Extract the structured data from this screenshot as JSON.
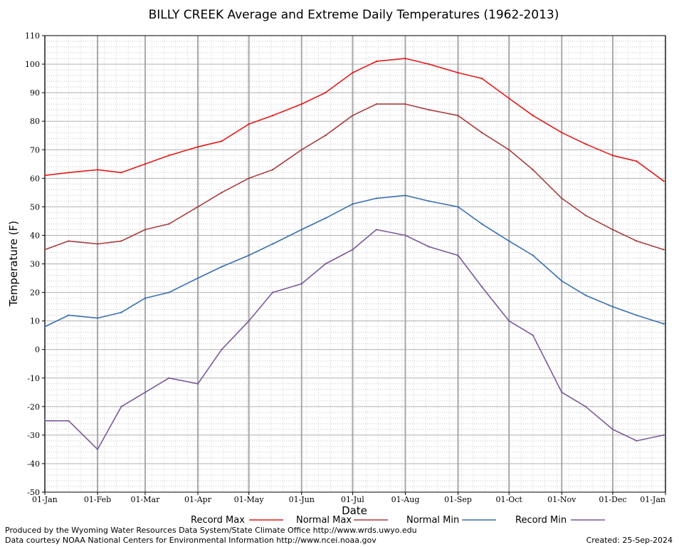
{
  "chart_data": {
    "type": "line",
    "title": "BILLY CREEK Average and Extreme Daily Temperatures (1962-2013)",
    "xlabel": "Date",
    "ylabel": "Temperature (F)",
    "ylim": [
      -50,
      110
    ],
    "yticks": [
      "110",
      "100",
      "90",
      "80",
      "70",
      "60",
      "50",
      "40",
      "30",
      "20",
      "10",
      "0",
      "-10",
      "-20",
      "-30",
      "-40",
      "-50"
    ],
    "xticks": [
      "01-Jan",
      "01-Feb",
      "01-Mar",
      "01-Apr",
      "01-May",
      "01-Jun",
      "01-Jul",
      "01-Aug",
      "01-Sep",
      "01-Oct",
      "01-Nov",
      "01-Dec",
      "01-Jan"
    ],
    "x": [
      1,
      15,
      32,
      46,
      60,
      74,
      91,
      105,
      121,
      135,
      152,
      166,
      182,
      196,
      213,
      227,
      244,
      258,
      274,
      288,
      305,
      319,
      335,
      349,
      365
    ],
    "grid": true,
    "legend_position": "bottom",
    "series": [
      {
        "name": "Record Max",
        "color": "#e41a1c",
        "values": [
          61,
          62,
          63,
          62,
          65,
          68,
          71,
          73,
          79,
          82,
          86,
          90,
          97,
          101,
          102,
          100,
          97,
          95,
          88,
          82,
          76,
          72,
          68,
          66,
          59
        ]
      },
      {
        "name": "Normal Max",
        "color": "#a83f3f",
        "values": [
          35,
          38,
          37,
          38,
          42,
          44,
          50,
          55,
          60,
          63,
          70,
          75,
          82,
          86,
          86,
          84,
          82,
          76,
          70,
          63,
          53,
          47,
          42,
          38,
          35
        ]
      },
      {
        "name": "Normal Min",
        "color": "#3a6fb0",
        "values": [
          8,
          12,
          11,
          13,
          18,
          20,
          25,
          29,
          33,
          37,
          42,
          46,
          51,
          53,
          54,
          52,
          50,
          44,
          38,
          33,
          24,
          19,
          15,
          12,
          9
        ]
      },
      {
        "name": "Record Min",
        "color": "#7a5a9a",
        "values": [
          -25,
          -25,
          -35,
          -20,
          -15,
          -10,
          -12,
          0,
          10,
          20,
          23,
          30,
          35,
          42,
          40,
          36,
          33,
          22,
          10,
          5,
          -15,
          -20,
          -28,
          -32,
          -30
        ]
      }
    ]
  },
  "footer": {
    "produced_by": "Produced by the Wyoming Water Resources Data System/State Climate Office http://www.wrds.uwyo.edu",
    "courtesy": "Data courtesy NOAA National Centers for Environmental Information http://www.ncei.noaa.gov",
    "created": "Created: 25-Sep-2024"
  }
}
